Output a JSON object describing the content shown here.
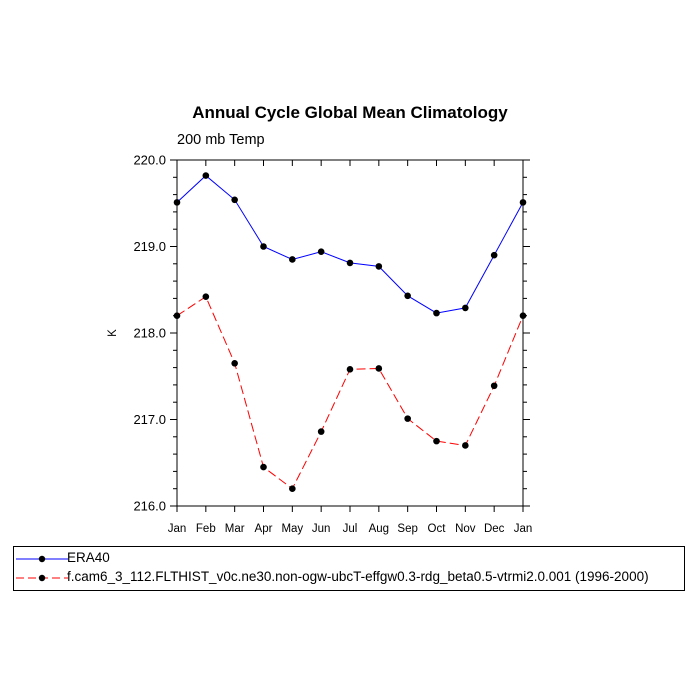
{
  "chart_data": {
    "type": "line",
    "title": "Annual Cycle Global Mean Climatology",
    "subtitle": "200 mb Temp",
    "xlabel": "",
    "ylabel": "K",
    "categories": [
      "Jan",
      "Feb",
      "Mar",
      "Apr",
      "May",
      "Jun",
      "Jul",
      "Aug",
      "Sep",
      "Oct",
      "Nov",
      "Dec",
      "Jan"
    ],
    "ylim": [
      216.0,
      220.0
    ],
    "yticks": [
      "216.0",
      "217.0",
      "218.0",
      "219.0",
      "220.0"
    ],
    "grid": false,
    "legend_position": "bottom",
    "series": [
      {
        "name": "ERA40",
        "color": "#0000ff",
        "dash": "solid",
        "values": [
          219.51,
          219.82,
          219.54,
          219.0,
          218.85,
          218.94,
          218.81,
          218.77,
          218.43,
          218.23,
          218.29,
          218.9,
          219.51
        ]
      },
      {
        "name": "f.cam6_3_112.FLTHIST_v0c.ne30.non-ogw-ubcT-effgw0.3-rdg_beta0.5-vtrmi2.0.001 (1996-2000)",
        "color": "#ff0000",
        "dash": "dashed",
        "values": [
          218.2,
          218.42,
          217.65,
          216.45,
          216.2,
          216.86,
          217.58,
          217.59,
          217.01,
          216.75,
          216.7,
          217.39,
          218.2
        ]
      }
    ]
  }
}
